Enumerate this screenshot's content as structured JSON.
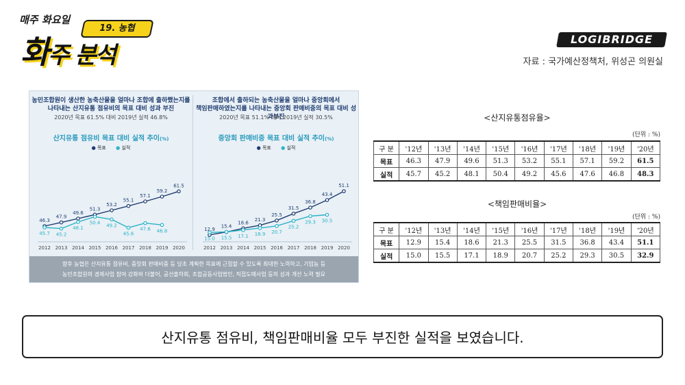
{
  "header": {
    "weekly": "매주 화요일",
    "tag": "19. 농협",
    "title_main": "화",
    "title_rest": "주 분석",
    "brand": "LOGIBRIDGE",
    "source": "자료 : 국가예산정책처, 위성곤 의원실"
  },
  "infographic": {
    "left": {
      "heading_line1": "농민조합원이 생산한 농축산물을 얼마나 조합에 출하했는지를",
      "heading_line2": "나타내는 산지유통 점유비의 목표 대비 성과 부진",
      "subheading": "2020년 목표 61.5% 대비 2019년 실적 46.8%",
      "chart_title": "산지유통 점유비 목표 대비 실적 추이",
      "chart_unit": "(%)",
      "legend_target": "목표",
      "legend_actual": "실적"
    },
    "right": {
      "heading_line1": "조합에서 출하되는 농축산물을 얼마나 중앙회에서",
      "heading_line2": "책임판매하였는지를 나타내는 중앙회 판매비중의 목표 대비 성과부진",
      "subheading": "2020년 목표 51.1% 대비 2019년 실적 30.5%",
      "chart_title": "중앙회 판매비중 목표 대비 실적 추이",
      "chart_unit": "(%)",
      "legend_target": "목표",
      "legend_actual": "실적"
    },
    "footer_line1": "향후 농협은 산지유통 점유비, 중앙회 판매비중 등 당초 계획한 목표에 근접할 수 있도록 최대한 노력하고, 기업농 등",
    "footer_line2": "농민조합원의 경제사업 참여 강화와 더불어, 공선출하회, 조합공동사업법인, 직접도매사업 등의 성과 개선 노력 필요"
  },
  "chart_data": [
    {
      "type": "line",
      "title": "산지유통 점유비 목표 대비 실적 추이",
      "x": [
        "2012",
        "2013",
        "2014",
        "2015",
        "2016",
        "2017",
        "2018",
        "2019",
        "2020"
      ],
      "series": [
        {
          "name": "목표",
          "color": "#1d3b6e",
          "values": [
            46.3,
            47.9,
            49.6,
            51.3,
            53.2,
            55.1,
            57.1,
            59.2,
            61.5
          ]
        },
        {
          "name": "실적",
          "color": "#2ab4c7",
          "values": [
            45.7,
            45.2,
            48.1,
            50.4,
            49.2,
            45.6,
            47.6,
            46.8,
            null
          ]
        }
      ],
      "ylim": [
        40,
        64
      ]
    },
    {
      "type": "line",
      "title": "중앙회 판매비중 목표 대비 실적 추이",
      "x": [
        "2012",
        "2013",
        "2014",
        "2015",
        "2016",
        "2017",
        "2018",
        "2019",
        "2020"
      ],
      "series": [
        {
          "name": "목표",
          "color": "#1d3b6e",
          "values": [
            12.9,
            15.4,
            18.6,
            21.3,
            25.5,
            31.5,
            36.8,
            43.4,
            51.1
          ]
        },
        {
          "name": "실적",
          "color": "#2ab4c7",
          "values": [
            15.0,
            15.5,
            17.1,
            18.9,
            20.7,
            25.2,
            29.3,
            30.5,
            null
          ]
        }
      ],
      "ylim": [
        8,
        56
      ]
    }
  ],
  "tables": [
    {
      "caption": "<산지유통점유율>",
      "unit": "(단위 : %)",
      "header": [
        "구  분",
        "'12년",
        "'13년",
        "'14년",
        "'15년",
        "'16년",
        "'17년",
        "'18년",
        "'19년",
        "'20년"
      ],
      "rows": [
        [
          "목표",
          "46.3",
          "47.9",
          "49.6",
          "51.3",
          "53.2",
          "55.1",
          "57.1",
          "59.2",
          "61.5"
        ],
        [
          "실적",
          "45.7",
          "45.2",
          "48.1",
          "50.4",
          "49.2",
          "45.6",
          "47.6",
          "46.8",
          "48.3"
        ]
      ]
    },
    {
      "caption": "<책임판매비율>",
      "unit": "(단위 : %)",
      "header": [
        "구  분",
        "'12년",
        "'13년",
        "'14년",
        "'15년",
        "'16년",
        "'17년",
        "'18년",
        "'19년",
        "'20년"
      ],
      "rows": [
        [
          "목표",
          "12.9",
          "15.4",
          "18.6",
          "21.3",
          "25.5",
          "31.5",
          "36.8",
          "43.4",
          "51.1"
        ],
        [
          "실적",
          "15.0",
          "15.5",
          "17.1",
          "18.9",
          "20.7",
          "25.2",
          "29.3",
          "30.5",
          "32.9"
        ]
      ]
    }
  ],
  "message": "산지유통 점유비, 책임판매비율 모두 부진한 실적을 보였습니다."
}
